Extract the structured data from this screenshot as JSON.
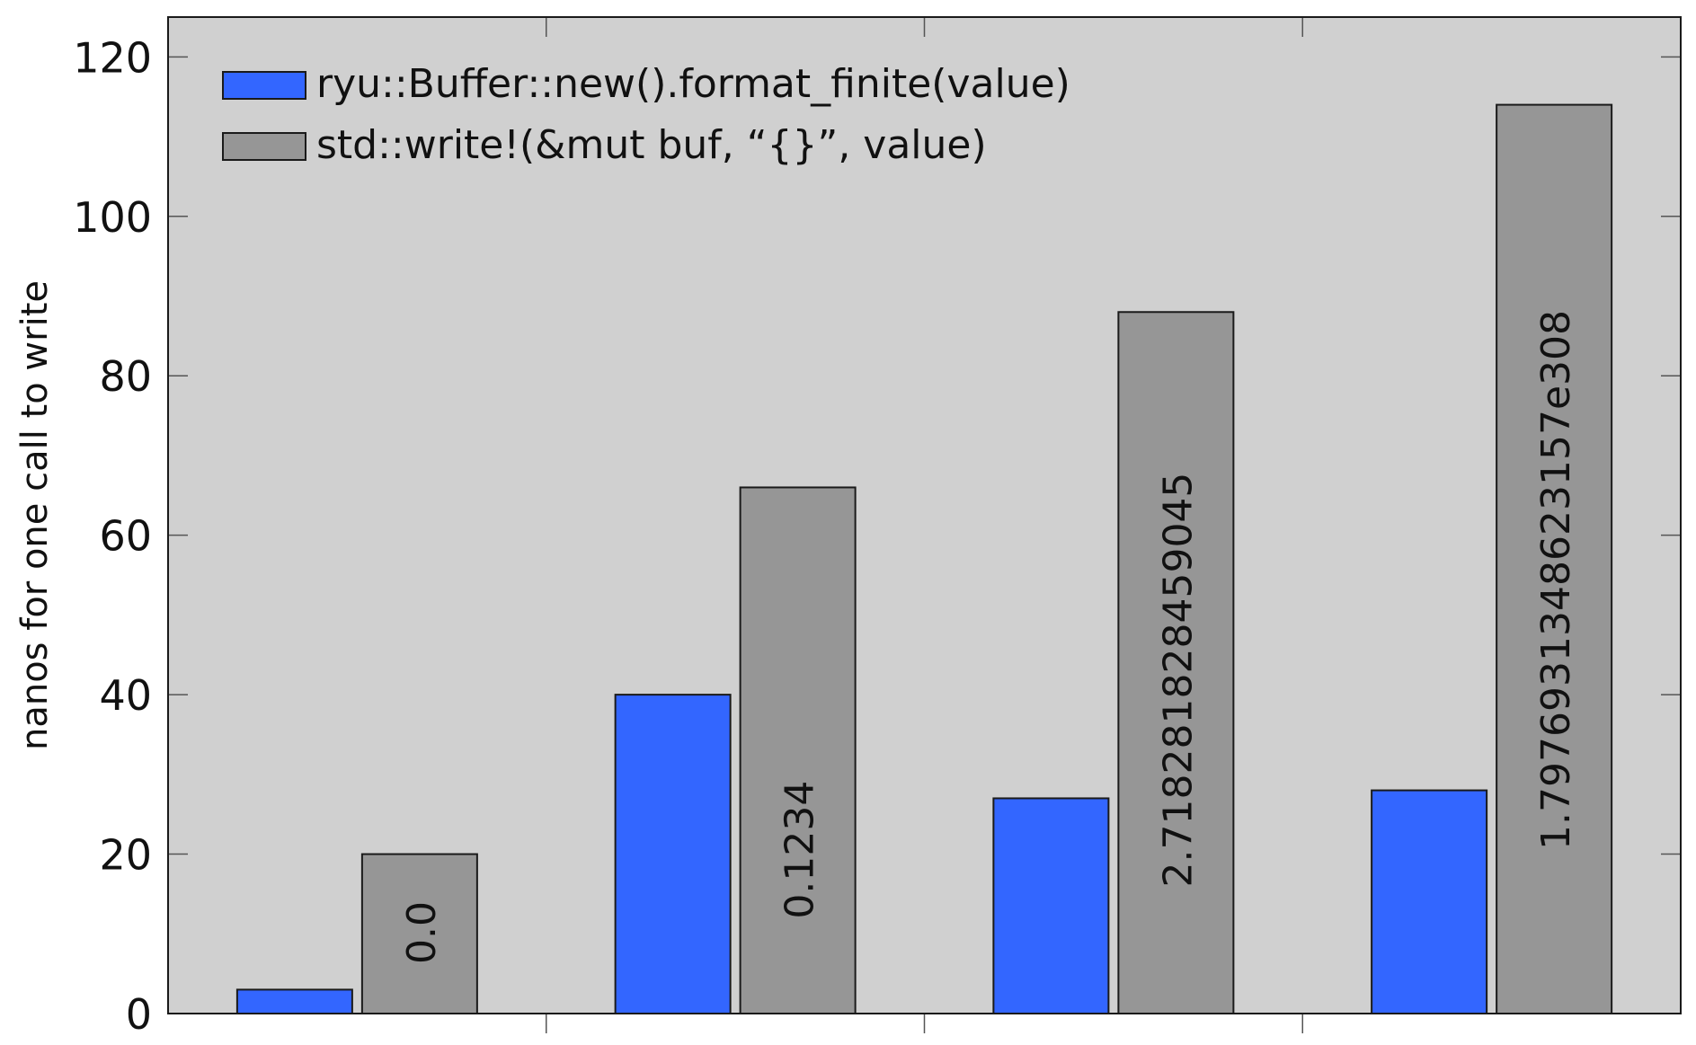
{
  "chart_data": {
    "type": "bar",
    "title": "",
    "xlabel": "",
    "ylabel": "nanos for one call to write",
    "ylim": [
      0,
      125
    ],
    "yticks": [
      0,
      20,
      40,
      60,
      80,
      100,
      120
    ],
    "grid": false,
    "legend_position": "top-left",
    "categories": [
      "0.0",
      "0.1234",
      "2.718281828459045",
      "1.7976931348623157e308"
    ],
    "series": [
      {
        "name": "ryu::Buffer::new().format_finite(value)",
        "color": "#3366ff",
        "values": [
          3,
          40,
          27,
          28
        ]
      },
      {
        "name": "std::write!(&mut buf, “{}”, value)",
        "color": "#969696",
        "values": [
          20,
          66,
          88,
          114
        ]
      }
    ],
    "plot_background": "#d0d0d0"
  }
}
